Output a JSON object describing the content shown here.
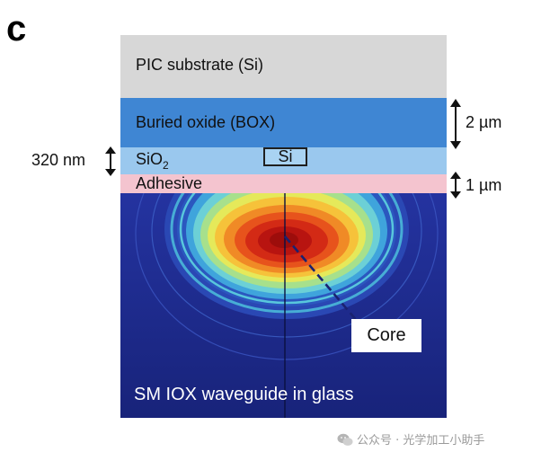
{
  "panel_label": "c",
  "layers": {
    "substrate": "PIC substrate (Si)",
    "box": "Buried oxide (BOX)",
    "sio2_base": "SiO",
    "sio2_sub": "2",
    "adhesive": "Adhesive",
    "si_chip": "Si"
  },
  "dimensions": {
    "box_thickness": "2 µm",
    "adhesive_thickness": "1 µm",
    "si_thickness": "320 nm"
  },
  "field": {
    "core_label": "Core",
    "waveguide_label": "SM IOX waveguide in glass"
  },
  "colors": {
    "substrate": "#d7d7d7",
    "box": "#3f86d3",
    "sio2": "#9ac8ee",
    "adhesive": "#f4c4cf",
    "glass_background": "#1f2a8c",
    "mode_peak": "#d21a10"
  },
  "watermark": {
    "icon": "wechat-icon",
    "text": "公众号 · 光学加工小助手"
  }
}
